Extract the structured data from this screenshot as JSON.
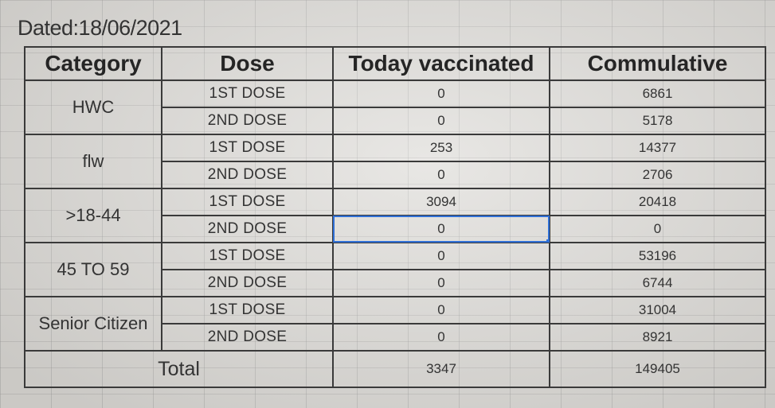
{
  "dated": "Dated:18/06/2021",
  "headers": {
    "category": "Category",
    "dose": "Dose",
    "today": "Today vaccinated",
    "cumulative": "Commulative"
  },
  "groups": [
    {
      "category": "HWC",
      "rows": [
        {
          "dose": "1ST DOSE",
          "today": "0",
          "cumulative": "6861"
        },
        {
          "dose": "2ND DOSE",
          "today": "0",
          "cumulative": "5178"
        }
      ]
    },
    {
      "category": "flw",
      "rows": [
        {
          "dose": "1ST DOSE",
          "today": "253",
          "cumulative": "14377"
        },
        {
          "dose": "2ND DOSE",
          "today": "0",
          "cumulative": "2706"
        }
      ]
    },
    {
      "category": ">18-44",
      "rows": [
        {
          "dose": "1ST DOSE",
          "today": "3094",
          "cumulative": "20418"
        },
        {
          "dose": "2ND DOSE",
          "today": "0",
          "cumulative": "0"
        }
      ]
    },
    {
      "category": "45 TO 59",
      "rows": [
        {
          "dose": "1ST DOSE",
          "today": "0",
          "cumulative": "53196"
        },
        {
          "dose": "2ND DOSE",
          "today": "0",
          "cumulative": "6744"
        }
      ]
    },
    {
      "category": "Senior Citizen",
      "rows": [
        {
          "dose": "1ST DOSE",
          "today": "0",
          "cumulative": "31004"
        },
        {
          "dose": "2ND DOSE",
          "today": "0",
          "cumulative": "8921"
        }
      ]
    }
  ],
  "total": {
    "label": "Total",
    "today": "3347",
    "cumulative": "149405"
  }
}
